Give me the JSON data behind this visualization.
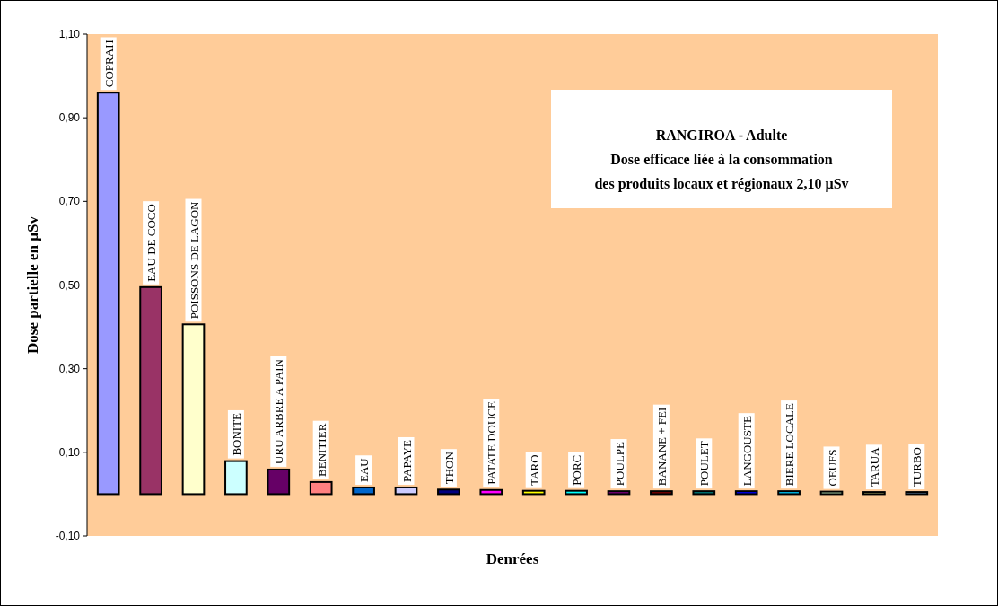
{
  "chart_data": {
    "type": "bar",
    "title": "RANGIROA - Adulte",
    "subtitle": "Dose efficace liée à la consommation des produits locaux et régionaux 2,10 µSv",
    "xlabel": "Denrées",
    "ylabel": "Dose partielle en µSv",
    "categories": [
      "COPRAH",
      "EAU DE COCO",
      "POISSONS DE LAGON",
      "BONITE",
      "URU ARBRE A PAIN",
      "BENITIER",
      "EAU",
      "PAPAYE",
      "THON",
      "PATATE DOUCE",
      "TARO",
      "PORC",
      "POULPE",
      "BANANE + FEI",
      "POULET",
      "LANGOUSTE",
      "BIERE LOCALE",
      "OEUFS",
      "TARUA",
      "TURBO"
    ],
    "values": [
      0.96,
      0.495,
      0.406,
      0.079,
      0.059,
      0.029,
      0.016,
      0.016,
      0.011,
      0.01,
      0.008,
      0.008,
      0.007,
      0.007,
      0.007,
      0.007,
      0.007,
      0.006,
      0.005,
      0.005
    ],
    "colors": [
      "#9999ff",
      "#993366",
      "#ffffcc",
      "#ccffff",
      "#660066",
      "#ff8080",
      "#0066cc",
      "#ccccff",
      "#000080",
      "#ff00ff",
      "#ffff00",
      "#00ffff",
      "#800080",
      "#800000",
      "#008080",
      "#0000ff",
      "#00ccff",
      "#ccffcc",
      "#ffff99",
      "#99ccff"
    ],
    "ylim": [
      -0.1,
      1.1
    ],
    "yticks": [
      {
        "value": -0.1,
        "label": "-0,10"
      },
      {
        "value": 0.1,
        "label": "0,10"
      },
      {
        "value": 0.3,
        "label": "0,30"
      },
      {
        "value": 0.5,
        "label": "0,50"
      },
      {
        "value": 0.7,
        "label": "0,70"
      },
      {
        "value": 0.9,
        "label": "0,90"
      },
      {
        "value": 1.1,
        "label": "1,10"
      }
    ],
    "grid": false,
    "tick_labels": "y"
  }
}
